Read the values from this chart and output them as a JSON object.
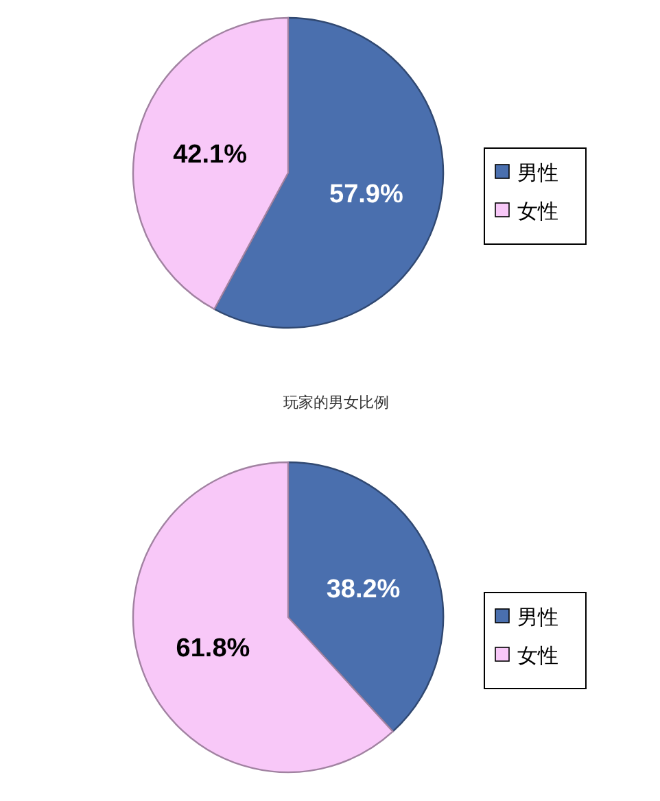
{
  "chart_data": [
    {
      "type": "pie",
      "categories": [
        "男性",
        "女性"
      ],
      "values": [
        57.9,
        42.1
      ],
      "value_labels": [
        "57.9%",
        "42.1%"
      ],
      "colors": [
        "#4a6fae",
        "#f8c8f8"
      ],
      "legend": "right",
      "annotations": [
        "玩家的男女比例"
      ]
    },
    {
      "type": "pie",
      "categories": [
        "男性",
        "女性"
      ],
      "values": [
        38.2,
        61.8
      ],
      "value_labels": [
        "38.2%",
        "61.8%"
      ],
      "colors": [
        "#4a6fae",
        "#f8c8f8"
      ],
      "legend": "right"
    }
  ]
}
